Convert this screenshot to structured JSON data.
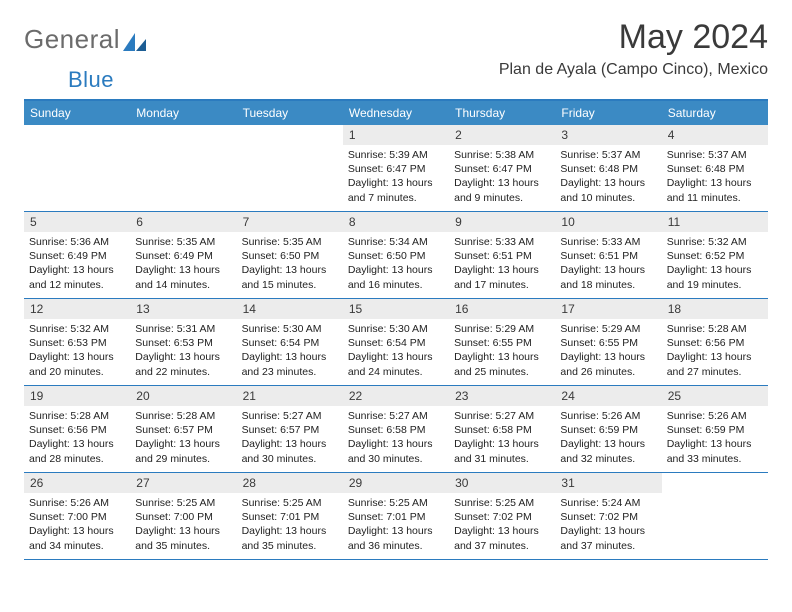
{
  "brand": {
    "word1": "General",
    "word2": "Blue"
  },
  "title": "May 2024",
  "location": "Plan de Ayala (Campo Cinco), Mexico",
  "colors": {
    "accent": "#2b7bbf",
    "header_bg": "#3b8ac4",
    "daynum_bg": "#ececec"
  },
  "dow": [
    "Sunday",
    "Monday",
    "Tuesday",
    "Wednesday",
    "Thursday",
    "Friday",
    "Saturday"
  ],
  "weeks": [
    [
      {
        "n": "",
        "lines": []
      },
      {
        "n": "",
        "lines": []
      },
      {
        "n": "",
        "lines": []
      },
      {
        "n": "1",
        "lines": [
          "Sunrise: 5:39 AM",
          "Sunset: 6:47 PM",
          "Daylight: 13 hours",
          "and 7 minutes."
        ]
      },
      {
        "n": "2",
        "lines": [
          "Sunrise: 5:38 AM",
          "Sunset: 6:47 PM",
          "Daylight: 13 hours",
          "and 9 minutes."
        ]
      },
      {
        "n": "3",
        "lines": [
          "Sunrise: 5:37 AM",
          "Sunset: 6:48 PM",
          "Daylight: 13 hours",
          "and 10 minutes."
        ]
      },
      {
        "n": "4",
        "lines": [
          "Sunrise: 5:37 AM",
          "Sunset: 6:48 PM",
          "Daylight: 13 hours",
          "and 11 minutes."
        ]
      }
    ],
    [
      {
        "n": "5",
        "lines": [
          "Sunrise: 5:36 AM",
          "Sunset: 6:49 PM",
          "Daylight: 13 hours",
          "and 12 minutes."
        ]
      },
      {
        "n": "6",
        "lines": [
          "Sunrise: 5:35 AM",
          "Sunset: 6:49 PM",
          "Daylight: 13 hours",
          "and 14 minutes."
        ]
      },
      {
        "n": "7",
        "lines": [
          "Sunrise: 5:35 AM",
          "Sunset: 6:50 PM",
          "Daylight: 13 hours",
          "and 15 minutes."
        ]
      },
      {
        "n": "8",
        "lines": [
          "Sunrise: 5:34 AM",
          "Sunset: 6:50 PM",
          "Daylight: 13 hours",
          "and 16 minutes."
        ]
      },
      {
        "n": "9",
        "lines": [
          "Sunrise: 5:33 AM",
          "Sunset: 6:51 PM",
          "Daylight: 13 hours",
          "and 17 minutes."
        ]
      },
      {
        "n": "10",
        "lines": [
          "Sunrise: 5:33 AM",
          "Sunset: 6:51 PM",
          "Daylight: 13 hours",
          "and 18 minutes."
        ]
      },
      {
        "n": "11",
        "lines": [
          "Sunrise: 5:32 AM",
          "Sunset: 6:52 PM",
          "Daylight: 13 hours",
          "and 19 minutes."
        ]
      }
    ],
    [
      {
        "n": "12",
        "lines": [
          "Sunrise: 5:32 AM",
          "Sunset: 6:53 PM",
          "Daylight: 13 hours",
          "and 20 minutes."
        ]
      },
      {
        "n": "13",
        "lines": [
          "Sunrise: 5:31 AM",
          "Sunset: 6:53 PM",
          "Daylight: 13 hours",
          "and 22 minutes."
        ]
      },
      {
        "n": "14",
        "lines": [
          "Sunrise: 5:30 AM",
          "Sunset: 6:54 PM",
          "Daylight: 13 hours",
          "and 23 minutes."
        ]
      },
      {
        "n": "15",
        "lines": [
          "Sunrise: 5:30 AM",
          "Sunset: 6:54 PM",
          "Daylight: 13 hours",
          "and 24 minutes."
        ]
      },
      {
        "n": "16",
        "lines": [
          "Sunrise: 5:29 AM",
          "Sunset: 6:55 PM",
          "Daylight: 13 hours",
          "and 25 minutes."
        ]
      },
      {
        "n": "17",
        "lines": [
          "Sunrise: 5:29 AM",
          "Sunset: 6:55 PM",
          "Daylight: 13 hours",
          "and 26 minutes."
        ]
      },
      {
        "n": "18",
        "lines": [
          "Sunrise: 5:28 AM",
          "Sunset: 6:56 PM",
          "Daylight: 13 hours",
          "and 27 minutes."
        ]
      }
    ],
    [
      {
        "n": "19",
        "lines": [
          "Sunrise: 5:28 AM",
          "Sunset: 6:56 PM",
          "Daylight: 13 hours",
          "and 28 minutes."
        ]
      },
      {
        "n": "20",
        "lines": [
          "Sunrise: 5:28 AM",
          "Sunset: 6:57 PM",
          "Daylight: 13 hours",
          "and 29 minutes."
        ]
      },
      {
        "n": "21",
        "lines": [
          "Sunrise: 5:27 AM",
          "Sunset: 6:57 PM",
          "Daylight: 13 hours",
          "and 30 minutes."
        ]
      },
      {
        "n": "22",
        "lines": [
          "Sunrise: 5:27 AM",
          "Sunset: 6:58 PM",
          "Daylight: 13 hours",
          "and 30 minutes."
        ]
      },
      {
        "n": "23",
        "lines": [
          "Sunrise: 5:27 AM",
          "Sunset: 6:58 PM",
          "Daylight: 13 hours",
          "and 31 minutes."
        ]
      },
      {
        "n": "24",
        "lines": [
          "Sunrise: 5:26 AM",
          "Sunset: 6:59 PM",
          "Daylight: 13 hours",
          "and 32 minutes."
        ]
      },
      {
        "n": "25",
        "lines": [
          "Sunrise: 5:26 AM",
          "Sunset: 6:59 PM",
          "Daylight: 13 hours",
          "and 33 minutes."
        ]
      }
    ],
    [
      {
        "n": "26",
        "lines": [
          "Sunrise: 5:26 AM",
          "Sunset: 7:00 PM",
          "Daylight: 13 hours",
          "and 34 minutes."
        ]
      },
      {
        "n": "27",
        "lines": [
          "Sunrise: 5:25 AM",
          "Sunset: 7:00 PM",
          "Daylight: 13 hours",
          "and 35 minutes."
        ]
      },
      {
        "n": "28",
        "lines": [
          "Sunrise: 5:25 AM",
          "Sunset: 7:01 PM",
          "Daylight: 13 hours",
          "and 35 minutes."
        ]
      },
      {
        "n": "29",
        "lines": [
          "Sunrise: 5:25 AM",
          "Sunset: 7:01 PM",
          "Daylight: 13 hours",
          "and 36 minutes."
        ]
      },
      {
        "n": "30",
        "lines": [
          "Sunrise: 5:25 AM",
          "Sunset: 7:02 PM",
          "Daylight: 13 hours",
          "and 37 minutes."
        ]
      },
      {
        "n": "31",
        "lines": [
          "Sunrise: 5:24 AM",
          "Sunset: 7:02 PM",
          "Daylight: 13 hours",
          "and 37 minutes."
        ]
      },
      {
        "n": "",
        "lines": []
      }
    ]
  ]
}
